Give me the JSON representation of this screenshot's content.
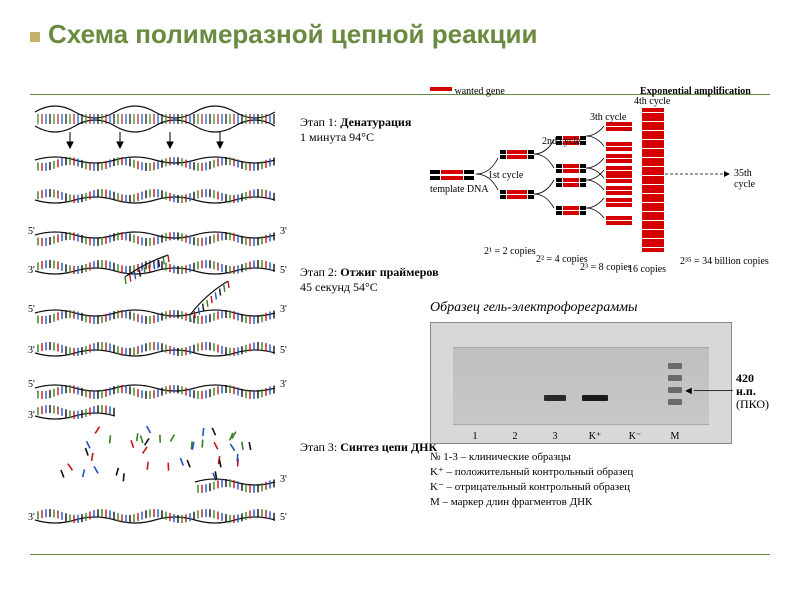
{
  "colors": {
    "title": "#6a8a3f",
    "rule_top": "#6a8a3f",
    "rule_bot": "#6a8a3f",
    "bullet": "#c5b26b",
    "dna_bases": [
      "#377e22",
      "#c01616",
      "#1f52c3",
      "#111111"
    ],
    "black": "#000000",
    "red": "#d40000",
    "grey": "#bfbfbf",
    "band": "#2a2a2a",
    "marker_band": "#6a6a6a"
  },
  "title": "Схема полимеразной цепной реакции",
  "left_panel": {
    "stage1": {
      "label_html": "Этап 1: <b>Денатурация</b>",
      "sub": "1 минута 94°C"
    },
    "stage2": {
      "label_html": "Этап 2: <b>Отжиг праймеров</b>",
      "sub": "45 секунд 54°C"
    },
    "stage3": {
      "label_html": "Этап 3: <b>Синтез цепи ДНК</b>",
      "sub": ""
    },
    "end5": "5'",
    "end3": "3'"
  },
  "tree": {
    "wanted_gene": "wanted gene",
    "exp_amp": "Exponential amplification",
    "template": "template DNA",
    "cycle_labels": [
      "1st cycle",
      "2nd cycle",
      "3th cycle",
      "4th cycle"
    ],
    "final_cycle": "35th cycle",
    "copies": [
      "2¹ = 2 copies",
      "2² = 4 copies",
      "2³ = 8 copies",
      "16 copies"
    ],
    "final_copies": "2³⁵ = 34 billion copies"
  },
  "gel": {
    "title": "Образец гель-электрофореграммы",
    "callout_main": "420 н.п.",
    "callout_sub": "(ПКО)",
    "lanes": [
      {
        "num": "1",
        "bands": []
      },
      {
        "num": "2",
        "bands": []
      },
      {
        "num": "3",
        "bands": [
          {
            "y": 48,
            "w": 22,
            "color": "#2a2a2a"
          }
        ]
      },
      {
        "num": "K⁺",
        "bands": [
          {
            "y": 48,
            "w": 26,
            "color": "#1a1a1a"
          }
        ]
      },
      {
        "num": "K⁻",
        "bands": []
      },
      {
        "num": "M",
        "bands": [
          {
            "y": 16,
            "w": 14,
            "color": "#6a6a6a"
          },
          {
            "y": 28,
            "w": 14,
            "color": "#6a6a6a"
          },
          {
            "y": 40,
            "w": 14,
            "color": "#6a6a6a"
          },
          {
            "y": 52,
            "w": 14,
            "color": "#6a6a6a"
          }
        ]
      }
    ],
    "legend": [
      "№ 1-3 – клинические образцы",
      "K⁺ – положительный контрольный образец",
      "K⁻ – отрицательный контрольный образец",
      "M – маркер длин фрагментов ДНК"
    ]
  }
}
